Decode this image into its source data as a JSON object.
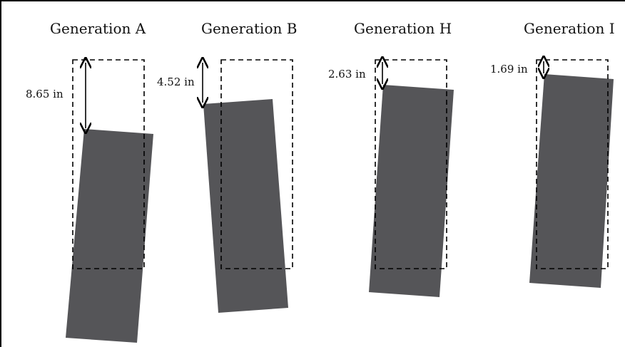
{
  "generations": [
    {
      "title": "Generation A",
      "gap_label": "8.65 in"
    },
    {
      "title": "Generation B",
      "gap_label": "4.52 in"
    },
    {
      "title": "Generation H",
      "gap_label": "2.63 in"
    },
    {
      "title": "Generation I",
      "gap_label": "1.69 in"
    }
  ],
  "colors": {
    "block": "#555558",
    "outline": "#000000",
    "text": "#111111"
  }
}
